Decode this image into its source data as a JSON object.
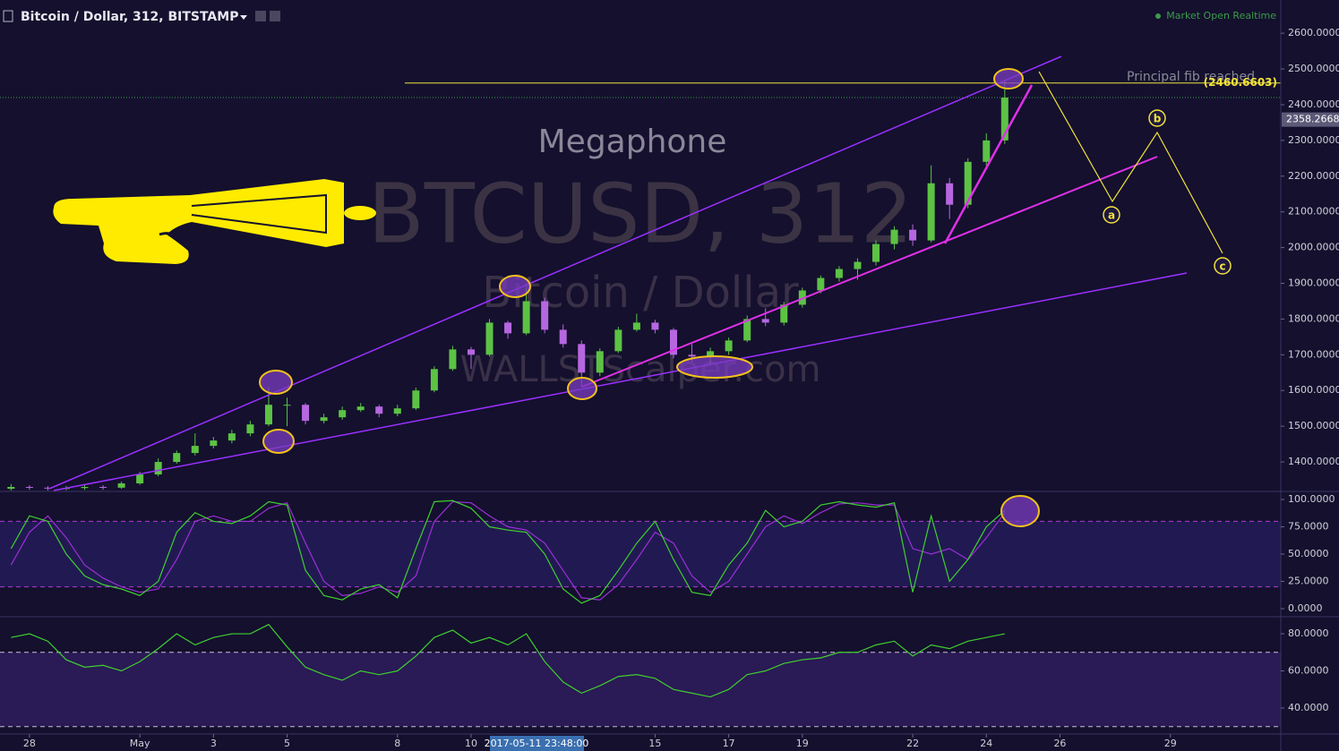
{
  "chart_data": [
    {
      "type": "candlestick",
      "title": "Bitcoin / Dollar, 312, BITSTAMP",
      "status": "Market Open Realtime",
      "annotation": "Megaphone",
      "note": "Principal fib reached",
      "watermark": [
        "BTCUSD, 312",
        "Bitcoin / Dollar",
        "WALLSTScalper.com"
      ],
      "waves": [
        "a",
        "b",
        "c"
      ],
      "crosshair_label": "2017-05-11 23:48:00",
      "up_color": "#5cc244",
      "down_color": "#b667e0",
      "x": [
        -0.5,
        0,
        0.5,
        1,
        1.5,
        2,
        2.5,
        3,
        3.5,
        4,
        4.5,
        5,
        5.5,
        6,
        6.5,
        7,
        7.5,
        8,
        8.5,
        9,
        9.5,
        10,
        10.5,
        11,
        11.5,
        12,
        12.5,
        13,
        13.5,
        14,
        14.5,
        15,
        15.5,
        16,
        16.5,
        17,
        17.5,
        18,
        18.5,
        19,
        19.5,
        20,
        20.5,
        21,
        21.5,
        22,
        22.5,
        23,
        23.5,
        24,
        24.5,
        25,
        25.5,
        26,
        26.5
      ],
      "open": [
        1325,
        1330,
        1328,
        1326,
        1327,
        1330,
        1328,
        1340,
        1365,
        1400,
        1425,
        1445,
        1460,
        1480,
        1505,
        1560,
        1560,
        1515,
        1525,
        1545,
        1555,
        1535,
        1550,
        1600,
        1660,
        1715,
        1700,
        1790,
        1760,
        1850,
        1770,
        1730,
        1650,
        1710,
        1770,
        1790,
        1770,
        1700,
        1695,
        1710,
        1740,
        1800,
        1790,
        1840,
        1880,
        1915,
        1940,
        1960,
        2010,
        2050,
        2020,
        2180,
        2120,
        2240,
        2300
      ],
      "high": [
        1338,
        1335,
        1332,
        1333,
        1336,
        1335,
        1345,
        1372,
        1410,
        1432,
        1480,
        1470,
        1490,
        1515,
        1610,
        1580,
        1565,
        1535,
        1555,
        1565,
        1560,
        1560,
        1608,
        1668,
        1725,
        1722,
        1800,
        1795,
        1890,
        1860,
        1785,
        1740,
        1718,
        1778,
        1815,
        1798,
        1775,
        1730,
        1720,
        1748,
        1810,
        1830,
        1848,
        1888,
        1922,
        1948,
        1970,
        2020,
        2060,
        2065,
        2230,
        2195,
        2250,
        2320,
        2470
      ],
      "low": [
        1320,
        1322,
        1320,
        1321,
        1322,
        1322,
        1325,
        1336,
        1360,
        1395,
        1418,
        1438,
        1452,
        1472,
        1500,
        1500,
        1505,
        1508,
        1518,
        1540,
        1525,
        1528,
        1545,
        1595,
        1655,
        1660,
        1695,
        1745,
        1755,
        1760,
        1720,
        1610,
        1640,
        1705,
        1765,
        1760,
        1690,
        1680,
        1670,
        1700,
        1735,
        1780,
        1782,
        1832,
        1872,
        1905,
        1910,
        1950,
        1995,
        2005,
        2015,
        2080,
        2110,
        2230,
        2290
      ],
      "close": [
        1330,
        1328,
        1326,
        1327,
        1330,
        1328,
        1340,
        1365,
        1400,
        1425,
        1445,
        1460,
        1480,
        1505,
        1560,
        1560,
        1515,
        1525,
        1545,
        1555,
        1535,
        1550,
        1600,
        1660,
        1715,
        1700,
        1790,
        1760,
        1850,
        1770,
        1730,
        1650,
        1710,
        1770,
        1790,
        1770,
        1700,
        1695,
        1710,
        1740,
        1800,
        1790,
        1840,
        1880,
        1915,
        1940,
        1960,
        2010,
        2050,
        2020,
        2180,
        2120,
        2240,
        2300,
        2420
      ],
      "last_price": 2358.2668,
      "fib_level": {
        "value": 2460.6603,
        "label": "(2460.6603)"
      },
      "xlim": [
        -0.8,
        34
      ],
      "xticks": [
        {
          "value": 0,
          "label": "28"
        },
        {
          "value": 3,
          "label": "May"
        },
        {
          "value": 5,
          "label": "3"
        },
        {
          "value": 7,
          "label": "5"
        },
        {
          "value": 10,
          "label": "8"
        },
        {
          "value": 12,
          "label": "10"
        },
        {
          "value": 17,
          "label": "15"
        },
        {
          "value": 19,
          "label": "17"
        },
        {
          "value": 21,
          "label": "19"
        },
        {
          "value": 24,
          "label": "22"
        },
        {
          "value": 26,
          "label": "24"
        },
        {
          "value": 28,
          "label": "26"
        },
        {
          "value": 31,
          "label": "29"
        }
      ],
      "ylim": [
        1320,
        2693
      ],
      "yticks": [
        {
          "value": 1400,
          "label": "1400.0000"
        },
        {
          "value": 1500,
          "label": "1500.0000"
        },
        {
          "value": 1600,
          "label": "1600.0000"
        },
        {
          "value": 1700,
          "label": "1700.0000"
        },
        {
          "value": 1800,
          "label": "1800.0000"
        },
        {
          "value": 1900,
          "label": "1900.0000"
        },
        {
          "value": 2000,
          "label": "2000.0000"
        },
        {
          "value": 2100,
          "label": "2100.0000"
        },
        {
          "value": 2200,
          "label": "2200.0000"
        },
        {
          "value": 2300,
          "label": "2300.0000"
        },
        {
          "value": 2400,
          "label": "2400.0000"
        },
        {
          "value": 2500,
          "label": "2500.0000"
        },
        {
          "value": 2600,
          "label": "2600.0000"
        }
      ]
    },
    {
      "type": "line",
      "series": [
        {
          "color": "#9b2fd6",
          "values": [
            40,
            70,
            85,
            65,
            40,
            28,
            20,
            15,
            18,
            45,
            80,
            85,
            80,
            80,
            92,
            97,
            60,
            25,
            12,
            14,
            20,
            15,
            30,
            80,
            98,
            97,
            85,
            75,
            72,
            60,
            35,
            10,
            8,
            22,
            45,
            70,
            60,
            30,
            15,
            25,
            50,
            75,
            85,
            78,
            88,
            96,
            97,
            95,
            95,
            55,
            50,
            55,
            45,
            65,
            88
          ]
        },
        {
          "color": "#3fcf2f",
          "values": [
            55,
            85,
            80,
            50,
            30,
            22,
            18,
            12,
            25,
            70,
            88,
            80,
            78,
            85,
            98,
            95,
            35,
            12,
            8,
            18,
            22,
            10,
            55,
            98,
            99,
            92,
            75,
            72,
            70,
            50,
            18,
            5,
            12,
            35,
            60,
            80,
            45,
            15,
            12,
            40,
            60,
            90,
            75,
            80,
            95,
            98,
            95,
            93,
            97,
            15,
            85,
            25,
            45,
            75,
            90
          ]
        }
      ],
      "guides": [
        20,
        80
      ],
      "ylim": [
        -6.6,
        106.6
      ],
      "yticks": [
        {
          "value": 0,
          "label": "0.0000"
        },
        {
          "value": 25,
          "label": "25.0000"
        },
        {
          "value": 50,
          "label": "50.0000"
        },
        {
          "value": 75,
          "label": "75.0000"
        },
        {
          "value": 100,
          "label": "100.0000"
        }
      ]
    },
    {
      "type": "line",
      "series": [
        {
          "color": "#3fcf2f",
          "values": [
            78,
            80,
            76,
            66,
            62,
            63,
            60,
            65,
            72,
            80,
            74,
            78,
            80,
            80,
            85,
            73,
            62,
            58,
            55,
            60,
            58,
            60,
            68,
            78,
            82,
            75,
            78,
            74,
            80,
            65,
            54,
            48,
            52,
            57,
            58,
            56,
            50,
            48,
            46,
            50,
            58,
            60,
            64,
            66,
            67,
            70,
            70,
            74,
            76,
            68,
            74,
            72,
            76,
            78,
            80
          ]
        }
      ],
      "guides": [
        30,
        70
      ],
      "ylim": [
        26,
        88.7
      ],
      "yticks": [
        {
          "value": 40,
          "label": "40.0000"
        },
        {
          "value": 60,
          "label": "60.0000"
        },
        {
          "value": 80,
          "label": "80.0000"
        }
      ]
    }
  ]
}
